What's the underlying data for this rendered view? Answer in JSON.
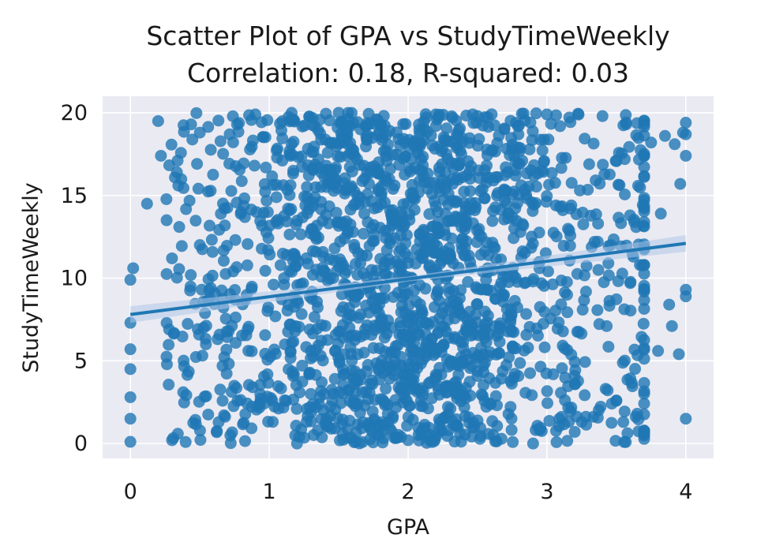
{
  "chart_data": {
    "type": "scatter",
    "title_line1": "Scatter Plot of GPA vs StudyTimeWeekly",
    "title_line2": "Correlation: 0.18, R-squared: 0.03",
    "xlabel": "GPA",
    "ylabel": "StudyTimeWeekly",
    "xlim": [
      -0.2,
      4.2
    ],
    "ylim": [
      -0.9,
      21.0
    ],
    "xticks": [
      0,
      1,
      2,
      3,
      4
    ],
    "yticks": [
      0,
      5,
      10,
      15,
      20
    ],
    "grid": true,
    "background_color": "#eaeaf2",
    "point_color": "#1f77b4",
    "regression_line": {
      "x": [
        0,
        4
      ],
      "y": [
        7.8,
        12.1
      ]
    },
    "points_sample": [
      {
        "x": 0.0,
        "y": 0.1
      },
      {
        "x": 0.0,
        "y": 1.5
      },
      {
        "x": 0.0,
        "y": 2.8
      },
      {
        "x": 0.0,
        "y": 4.5
      },
      {
        "x": 0.0,
        "y": 5.7
      },
      {
        "x": 0.0,
        "y": 7.3
      },
      {
        "x": 0.0,
        "y": 9.9
      },
      {
        "x": 0.02,
        "y": 10.6
      },
      {
        "x": 0.12,
        "y": 14.5
      },
      {
        "x": 0.2,
        "y": 19.5
      },
      {
        "x": 0.22,
        "y": 17.4
      },
      {
        "x": 0.3,
        "y": 0.2
      },
      {
        "x": 0.5,
        "y": 18.8
      },
      {
        "x": 0.5,
        "y": 12.0
      },
      {
        "x": 0.9,
        "y": 19.9
      },
      {
        "x": 1.2,
        "y": 0.0
      },
      {
        "x": 1.5,
        "y": 20.0
      },
      {
        "x": 2.0,
        "y": 0.2
      },
      {
        "x": 2.2,
        "y": 19.9
      },
      {
        "x": 2.5,
        "y": 19.8
      },
      {
        "x": 2.9,
        "y": 0.0
      },
      {
        "x": 3.0,
        "y": 19.9
      },
      {
        "x": 3.2,
        "y": 0.7
      },
      {
        "x": 3.4,
        "y": 19.8
      },
      {
        "x": 3.5,
        "y": 2.6
      },
      {
        "x": 3.55,
        "y": 1.3
      },
      {
        "x": 3.6,
        "y": 9.7
      },
      {
        "x": 3.65,
        "y": 1.8
      },
      {
        "x": 3.7,
        "y": 10.8
      },
      {
        "x": 3.75,
        "y": 18.2
      },
      {
        "x": 3.8,
        "y": 5.6
      },
      {
        "x": 3.82,
        "y": 13.9
      },
      {
        "x": 3.85,
        "y": 18.6
      },
      {
        "x": 3.88,
        "y": 8.4
      },
      {
        "x": 3.9,
        "y": 7.1
      },
      {
        "x": 3.92,
        "y": 18.1
      },
      {
        "x": 3.95,
        "y": 5.4
      },
      {
        "x": 3.96,
        "y": 15.7
      },
      {
        "x": 3.98,
        "y": 18.8
      },
      {
        "x": 4.0,
        "y": 1.5
      },
      {
        "x": 4.0,
        "y": 8.9
      },
      {
        "x": 4.0,
        "y": 9.3
      },
      {
        "x": 4.0,
        "y": 17.4
      },
      {
        "x": 4.0,
        "y": 18.7
      },
      {
        "x": 4.0,
        "y": 19.4
      }
    ]
  }
}
